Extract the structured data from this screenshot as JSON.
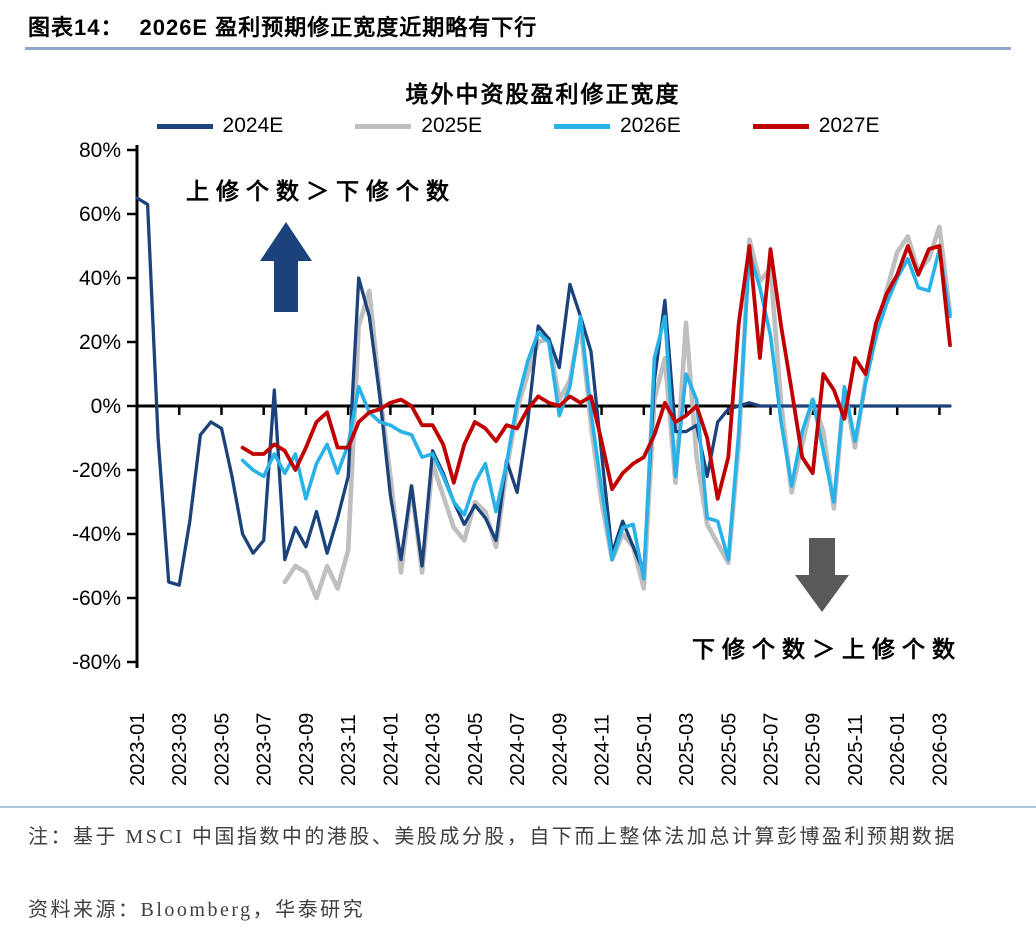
{
  "header": {
    "tag": "图表14：",
    "title": "2026E 盈利预期修正宽度近期略有下行"
  },
  "annotations": {
    "up": "上修个数＞下修个数",
    "down": "下修个数＞上修个数"
  },
  "notes": {
    "note": "注：基于 MSCI 中国指数中的港股、美股成分股，自下而上整体法加总计算彭博盈利预期数据",
    "source": "资料来源：Bloomberg，华泰研究"
  },
  "colors": {
    "navy": "#1B427A",
    "gray": "#BFBFBF",
    "cyan": "#29B2E8",
    "red": "#C00000",
    "up_arrow": "#1B427A",
    "down_arrow": "#595959",
    "header_rule": "#8FA9CC",
    "notes_rule": "#AEC3DC",
    "notes_text": "#3F3F3F",
    "axis": "#000000"
  },
  "chart_data": {
    "type": "line",
    "title": "境外中资股盈利修正宽度",
    "ylabel": "",
    "xlabel": "",
    "grid": false,
    "legend_position": "top",
    "ylim": [
      -80,
      80
    ],
    "ytick_step": 20,
    "ytick_suffix": "%",
    "xtick_every": 4,
    "xtick_labels": [
      "2023-01",
      "2023-03",
      "2023-05",
      "2023-07",
      "2023-09",
      "2023-11",
      "2024-01",
      "2024-03",
      "2024-05",
      "2024-07",
      "2024-09",
      "2024-11",
      "2025-01",
      "2025-03",
      "2025-05",
      "2025-07",
      "2025-09",
      "2025-11",
      "2026-01",
      "2026-03"
    ],
    "x": [
      "2023-01-01",
      "2023-01-16",
      "2023-02-01",
      "2023-02-16",
      "2023-03-01",
      "2023-03-16",
      "2023-04-01",
      "2023-04-16",
      "2023-05-01",
      "2023-05-16",
      "2023-06-01",
      "2023-06-16",
      "2023-07-01",
      "2023-07-16",
      "2023-08-01",
      "2023-08-16",
      "2023-09-01",
      "2023-09-16",
      "2023-10-01",
      "2023-10-16",
      "2023-11-01",
      "2023-11-16",
      "2023-12-01",
      "2023-12-16",
      "2024-01-01",
      "2024-01-16",
      "2024-02-01",
      "2024-02-16",
      "2024-03-01",
      "2024-03-16",
      "2024-04-01",
      "2024-04-16",
      "2024-05-01",
      "2024-05-16",
      "2024-06-01",
      "2024-06-16",
      "2024-07-01",
      "2024-07-16",
      "2024-08-01",
      "2024-08-16",
      "2024-09-01",
      "2024-09-16",
      "2024-10-01",
      "2024-10-16",
      "2024-11-01",
      "2024-11-16",
      "2024-12-01",
      "2024-12-16",
      "2025-01-01",
      "2025-01-16",
      "2025-02-01",
      "2025-02-16",
      "2025-03-01",
      "2025-03-16",
      "2025-04-01",
      "2025-04-16",
      "2025-05-01",
      "2025-05-16",
      "2025-06-01",
      "2025-06-16",
      "2025-07-01",
      "2025-07-16",
      "2025-08-01",
      "2025-08-16",
      "2025-09-01",
      "2025-09-16",
      "2025-10-01",
      "2025-10-16",
      "2025-11-01",
      "2025-11-16",
      "2025-12-01",
      "2025-12-16",
      "2026-01-01",
      "2026-01-16",
      "2026-02-01",
      "2026-02-16",
      "2026-03-01",
      "2026-03-16"
    ],
    "series": [
      {
        "name": "2024E",
        "color": "#1B427A",
        "values": [
          65,
          63,
          -10,
          -55,
          -56,
          -36,
          -9,
          -5,
          -7,
          -22,
          -40,
          -46,
          -42,
          5,
          -48,
          -38,
          -44,
          -33,
          -46,
          -35,
          -22,
          40,
          28,
          3,
          -28,
          -48,
          -25,
          -50,
          -14,
          -21,
          -30,
          -37,
          -31,
          -35,
          -42,
          -17,
          -27,
          -5,
          25,
          21,
          12,
          38,
          28,
          17,
          -15,
          -46,
          -36,
          -44,
          -52,
          8,
          33,
          -8,
          -8,
          -6,
          -22,
          -5,
          -1,
          0,
          1,
          0,
          0,
          0,
          0,
          0,
          0,
          0,
          0,
          0,
          0,
          0,
          0,
          0,
          0,
          0,
          0,
          0,
          0,
          0
        ]
      },
      {
        "name": "2025E",
        "color": "#BFBFBF",
        "values": [
          null,
          null,
          null,
          null,
          null,
          null,
          null,
          null,
          null,
          null,
          null,
          null,
          null,
          null,
          -55,
          -50,
          -52,
          -60,
          -50,
          -57,
          -45,
          25,
          36,
          4,
          -22,
          -52,
          -25,
          -52,
          -18,
          -28,
          -38,
          -42,
          -30,
          -33,
          -44,
          -20,
          -1,
          10,
          20,
          21,
          2,
          8,
          26,
          -6,
          -30,
          -48,
          -40,
          -44,
          -57,
          2,
          15,
          -24,
          26,
          -16,
          -37,
          -43,
          -49,
          -12,
          52,
          39,
          43,
          1,
          -27,
          -12,
          2,
          -8,
          -32,
          5,
          -13,
          8,
          22,
          36,
          48,
          53,
          42,
          46,
          56,
          29
        ]
      },
      {
        "name": "2026E",
        "color": "#29B2E8",
        "values": [
          null,
          null,
          null,
          null,
          null,
          null,
          null,
          null,
          null,
          null,
          -17,
          -20,
          -22,
          -15,
          -21,
          -15,
          -29,
          -18,
          -12,
          -21,
          -12,
          6,
          -2,
          -5,
          -6,
          -8,
          -9,
          -16,
          -15,
          -22,
          -30,
          -34,
          -24,
          -18,
          -33,
          -18,
          1,
          14,
          23,
          20,
          -3,
          6,
          28,
          -2,
          -26,
          -48,
          -38,
          -37,
          -54,
          15,
          28,
          -22,
          10,
          2,
          -35,
          -36,
          -48,
          -8,
          48,
          37,
          22,
          -5,
          -25,
          -8,
          2,
          -14,
          -30,
          6,
          -11,
          7,
          22,
          32,
          40,
          46,
          37,
          36,
          49,
          28
        ]
      },
      {
        "name": "2027E",
        "color": "#C00000",
        "values": [
          null,
          null,
          null,
          null,
          null,
          null,
          null,
          null,
          null,
          null,
          -13,
          -15,
          -15,
          -12,
          -14,
          -20,
          -13,
          -5,
          -2,
          -13,
          -13,
          -5,
          -2,
          -1,
          1,
          2,
          0,
          -6,
          -6,
          -12,
          -24,
          -12,
          -5,
          -7,
          -11,
          -6,
          -7,
          -1,
          3,
          1,
          0,
          3,
          1,
          3,
          -11,
          -26,
          -21,
          -18,
          -16,
          -9,
          1,
          -5,
          -3,
          0,
          -10,
          -29,
          -16,
          26,
          50,
          15,
          49,
          25,
          5,
          -16,
          -21,
          10,
          5,
          -4,
          15,
          10,
          26,
          35,
          41,
          50,
          41,
          49,
          50,
          19
        ]
      }
    ]
  }
}
